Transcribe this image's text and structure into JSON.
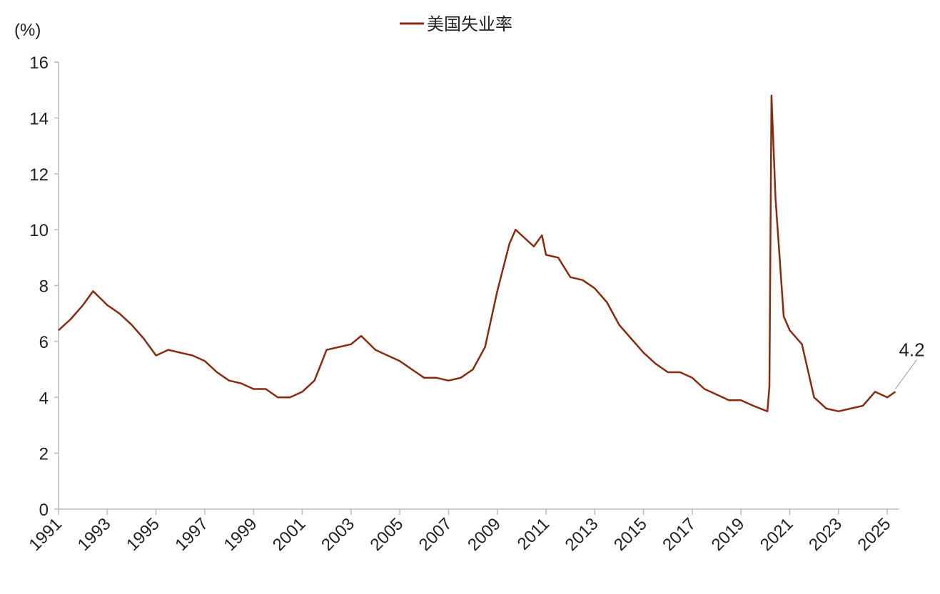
{
  "chart_data": {
    "type": "line",
    "title": "",
    "ylabel": "(%)",
    "xlabel": "",
    "ylim": [
      0,
      16
    ],
    "yticks": [
      "0",
      "2",
      "4",
      "6",
      "8",
      "10",
      "12",
      "14",
      "16"
    ],
    "xticks": [
      "1991",
      "1993",
      "1995",
      "1997",
      "1999",
      "2001",
      "2003",
      "2005",
      "2007",
      "2009",
      "2011",
      "2013",
      "2015",
      "2017",
      "2019",
      "2021",
      "2023",
      "2025"
    ],
    "xlim": [
      "1991-01",
      "2025-05"
    ],
    "grid": false,
    "legend_position": "top-center",
    "annotation": {
      "text": "4.2",
      "date": "2025-05",
      "value": 4.2
    },
    "series": [
      {
        "name": "美国失业率",
        "color": "#8B2A0E",
        "points": [
          [
            "1991-01",
            6.4
          ],
          [
            "1991-07",
            6.8
          ],
          [
            "1992-01",
            7.3
          ],
          [
            "1992-06",
            7.8
          ],
          [
            "1993-01",
            7.3
          ],
          [
            "1993-07",
            7.0
          ],
          [
            "1994-01",
            6.6
          ],
          [
            "1994-07",
            6.1
          ],
          [
            "1995-01",
            5.5
          ],
          [
            "1995-07",
            5.7
          ],
          [
            "1996-01",
            5.6
          ],
          [
            "1996-07",
            5.5
          ],
          [
            "1997-01",
            5.3
          ],
          [
            "1997-07",
            4.9
          ],
          [
            "1998-01",
            4.6
          ],
          [
            "1998-07",
            4.5
          ],
          [
            "1999-01",
            4.3
          ],
          [
            "1999-07",
            4.3
          ],
          [
            "2000-01",
            4.0
          ],
          [
            "2000-07",
            4.0
          ],
          [
            "2001-01",
            4.2
          ],
          [
            "2001-07",
            4.6
          ],
          [
            "2002-01",
            5.7
          ],
          [
            "2002-07",
            5.8
          ],
          [
            "2003-01",
            5.9
          ],
          [
            "2003-06",
            6.2
          ],
          [
            "2004-01",
            5.7
          ],
          [
            "2004-07",
            5.5
          ],
          [
            "2005-01",
            5.3
          ],
          [
            "2005-07",
            5.0
          ],
          [
            "2006-01",
            4.7
          ],
          [
            "2006-07",
            4.7
          ],
          [
            "2007-01",
            4.6
          ],
          [
            "2007-07",
            4.7
          ],
          [
            "2008-01",
            5.0
          ],
          [
            "2008-07",
            5.8
          ],
          [
            "2009-01",
            7.8
          ],
          [
            "2009-07",
            9.5
          ],
          [
            "2009-10",
            10.0
          ],
          [
            "2010-01",
            9.8
          ],
          [
            "2010-07",
            9.4
          ],
          [
            "2010-11",
            9.8
          ],
          [
            "2011-01",
            9.1
          ],
          [
            "2011-07",
            9.0
          ],
          [
            "2012-01",
            8.3
          ],
          [
            "2012-07",
            8.2
          ],
          [
            "2013-01",
            7.9
          ],
          [
            "2013-07",
            7.4
          ],
          [
            "2014-01",
            6.6
          ],
          [
            "2014-07",
            6.1
          ],
          [
            "2015-01",
            5.6
          ],
          [
            "2015-07",
            5.2
          ],
          [
            "2016-01",
            4.9
          ],
          [
            "2016-07",
            4.9
          ],
          [
            "2017-01",
            4.7
          ],
          [
            "2017-07",
            4.3
          ],
          [
            "2018-01",
            4.1
          ],
          [
            "2018-07",
            3.9
          ],
          [
            "2019-01",
            3.9
          ],
          [
            "2019-07",
            3.7
          ],
          [
            "2020-02",
            3.5
          ],
          [
            "2020-03",
            4.4
          ],
          [
            "2020-04",
            14.8
          ],
          [
            "2020-06",
            11.1
          ],
          [
            "2020-10",
            6.9
          ],
          [
            "2021-01",
            6.4
          ],
          [
            "2021-07",
            5.9
          ],
          [
            "2022-01",
            4.0
          ],
          [
            "2022-07",
            3.6
          ],
          [
            "2023-01",
            3.5
          ],
          [
            "2023-07",
            3.6
          ],
          [
            "2024-01",
            3.7
          ],
          [
            "2024-07",
            4.2
          ],
          [
            "2025-01",
            4.0
          ],
          [
            "2025-05",
            4.2
          ]
        ]
      }
    ]
  }
}
